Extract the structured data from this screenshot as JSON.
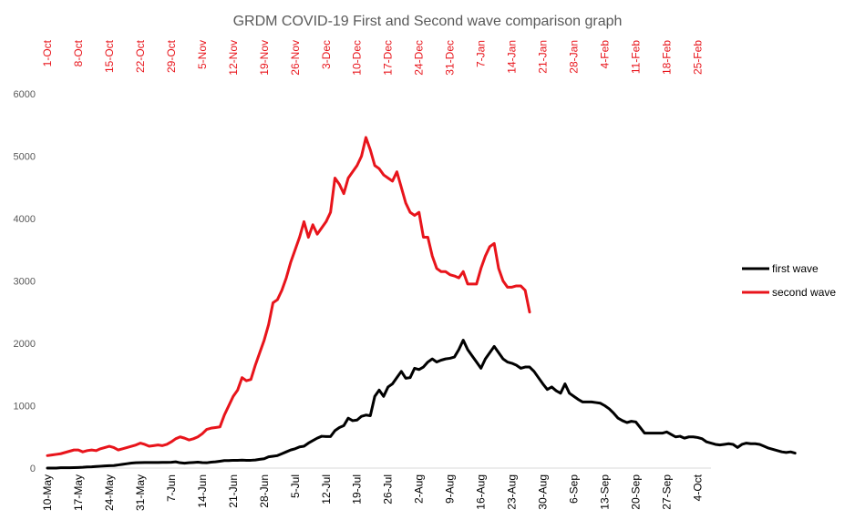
{
  "chart_data": {
    "type": "line",
    "title": "GRDM COVID-19 First and Second wave comparison graph",
    "ylim": [
      0,
      6000
    ],
    "yticks": [
      0,
      1000,
      2000,
      3000,
      4000,
      5000,
      6000
    ],
    "grid": false,
    "legend_position": "right",
    "x_bottom_labels": [
      "10-May",
      "17-May",
      "24-May",
      "31-May",
      "7-Jun",
      "14-Jun",
      "21-Jun",
      "28-Jun",
      "5-Jul",
      "12-Jul",
      "19-Jul",
      "26-Jul",
      "2-Aug",
      "9-Aug",
      "16-Aug",
      "23-Aug",
      "30-Aug",
      "6-Sep",
      "13-Sep",
      "20-Sep",
      "27-Sep",
      "4-Oct"
    ],
    "x_top_labels": [
      "1-Oct",
      "8-Oct",
      "15-Oct",
      "22-Oct",
      "29-Oct",
      "5-Nov",
      "12-Nov",
      "19-Nov",
      "26-Nov",
      "3-Dec",
      "10-Dec",
      "17-Dec",
      "24-Dec",
      "31-Dec",
      "7-Jan",
      "14-Jan",
      "21-Jan",
      "28-Jan",
      "4-Feb",
      "11-Feb",
      "18-Feb",
      "25-Feb"
    ],
    "series": [
      {
        "name": "first wave",
        "color": "#000000",
        "axis": "bottom",
        "x_start": "10-May",
        "x_step_days": 1,
        "values": [
          0,
          0,
          0,
          5,
          5,
          5,
          8,
          10,
          12,
          18,
          20,
          25,
          30,
          35,
          38,
          40,
          50,
          60,
          70,
          80,
          85,
          88,
          90,
          90,
          90,
          90,
          92,
          92,
          93,
          100,
          85,
          78,
          85,
          90,
          95,
          88,
          85,
          95,
          100,
          110,
          120,
          120,
          125,
          125,
          127,
          125,
          125,
          130,
          140,
          150,
          180,
          190,
          200,
          230,
          260,
          290,
          310,
          340,
          350,
          400,
          440,
          480,
          510,
          505,
          505,
          600,
          650,
          680,
          800,
          760,
          770,
          830,
          850,
          840,
          1150,
          1250,
          1150,
          1300,
          1350,
          1450,
          1550,
          1440,
          1450,
          1600,
          1580,
          1620,
          1700,
          1750,
          1700,
          1730,
          1750,
          1760,
          1780,
          1900,
          2050,
          1900,
          1800,
          1700,
          1600,
          1750,
          1850,
          1950,
          1850,
          1750,
          1700,
          1680,
          1650,
          1600,
          1620,
          1620,
          1550,
          1450,
          1350,
          1260,
          1300,
          1240,
          1200,
          1350,
          1200,
          1150,
          1100,
          1060,
          1060,
          1060,
          1050,
          1040,
          1000,
          950,
          880,
          800,
          760,
          730,
          750,
          740,
          650,
          560,
          560,
          560,
          560,
          560,
          580,
          540,
          500,
          510,
          480,
          500,
          500,
          490,
          470,
          420,
          400,
          380,
          370,
          380,
          390,
          380,
          330,
          380,
          400,
          390,
          390,
          380,
          350,
          320,
          300,
          280,
          260,
          250,
          260,
          240
        ]
      },
      {
        "name": "second wave",
        "color": "#e8141b",
        "axis": "top",
        "x_start": "1-Oct",
        "x_step_days": 1,
        "values": [
          200,
          210,
          220,
          230,
          250,
          270,
          290,
          290,
          260,
          280,
          290,
          280,
          310,
          330,
          350,
          330,
          290,
          310,
          330,
          350,
          370,
          400,
          380,
          350,
          360,
          370,
          360,
          380,
          420,
          470,
          500,
          480,
          450,
          470,
          500,
          550,
          620,
          640,
          650,
          660,
          850,
          1000,
          1150,
          1250,
          1450,
          1400,
          1420,
          1650,
          1850,
          2050,
          2300,
          2650,
          2700,
          2850,
          3050,
          3300,
          3500,
          3700,
          3950,
          3700,
          3900,
          3750,
          3850,
          3950,
          4100,
          4650,
          4550,
          4400,
          4650,
          4750,
          4850,
          5000,
          5300,
          5100,
          4850,
          4800,
          4700,
          4650,
          4600,
          4750,
          4500,
          4250,
          4100,
          4050,
          4100,
          3700,
          3700,
          3400,
          3200,
          3150,
          3150,
          3100,
          3080,
          3050,
          3150,
          2950,
          2950,
          2950,
          3200,
          3400,
          3550,
          3600,
          3200,
          3000,
          2900,
          2900,
          2920,
          2920,
          2850,
          2500
        ]
      }
    ]
  }
}
